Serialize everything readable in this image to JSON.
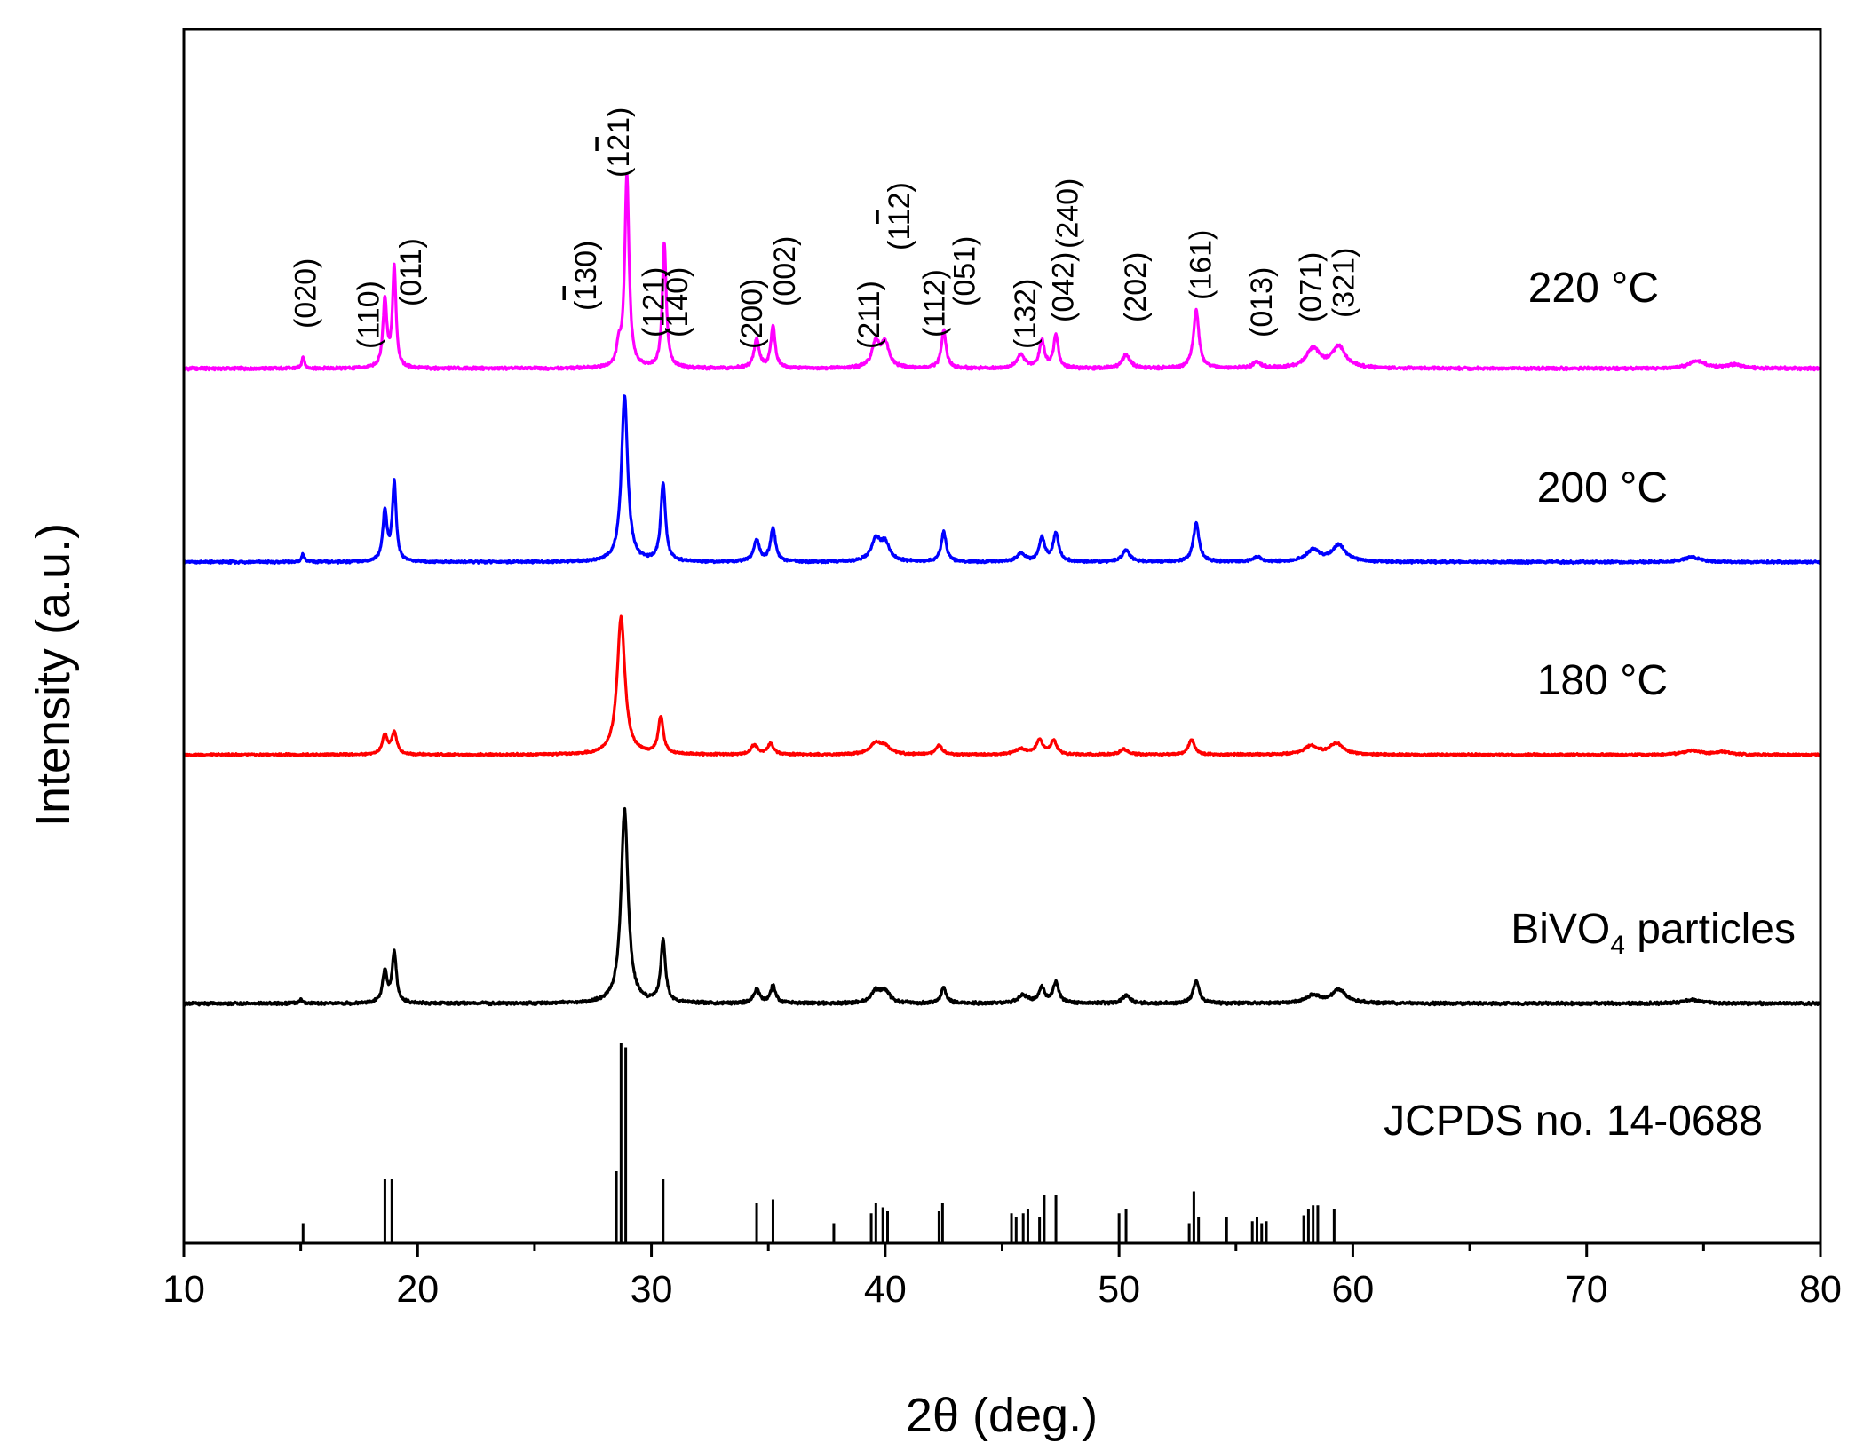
{
  "chart_data": {
    "type": "line",
    "xlabel": "2θ (deg.)",
    "ylabel": "Intensity (a.u.)",
    "xlim": [
      10,
      80
    ],
    "x_ticks": [
      "10",
      "20",
      "30",
      "40",
      "50",
      "60",
      "70",
      "80"
    ],
    "grid": false,
    "legend": "inline labels on right",
    "series": [
      {
        "name": "220 °C",
        "name_text": "220 ",
        "unit_text": "°C",
        "color": "#ff00ff",
        "baseline": 0,
        "peaks": [
          {
            "x": 15.1,
            "h": 0.06,
            "w": 0.07
          },
          {
            "x": 18.6,
            "h": 0.35,
            "w": 0.1
          },
          {
            "x": 19.0,
            "h": 0.52,
            "w": 0.09
          },
          {
            "x": 28.6,
            "h": 0.1,
            "w": 0.1
          },
          {
            "x": 28.95,
            "h": 1.0,
            "w": 0.11
          },
          {
            "x": 30.55,
            "h": 0.65,
            "w": 0.1
          },
          {
            "x": 34.5,
            "h": 0.15,
            "w": 0.13
          },
          {
            "x": 35.2,
            "h": 0.22,
            "w": 0.11
          },
          {
            "x": 39.6,
            "h": 0.13,
            "w": 0.2
          },
          {
            "x": 40.0,
            "h": 0.12,
            "w": 0.2
          },
          {
            "x": 42.5,
            "h": 0.2,
            "w": 0.12
          },
          {
            "x": 45.8,
            "h": 0.07,
            "w": 0.2
          },
          {
            "x": 46.7,
            "h": 0.14,
            "w": 0.13
          },
          {
            "x": 47.3,
            "h": 0.17,
            "w": 0.12
          },
          {
            "x": 50.3,
            "h": 0.07,
            "w": 0.2
          },
          {
            "x": 53.3,
            "h": 0.3,
            "w": 0.14
          },
          {
            "x": 55.9,
            "h": 0.03,
            "w": 0.2
          },
          {
            "x": 58.3,
            "h": 0.1,
            "w": 0.35
          },
          {
            "x": 59.4,
            "h": 0.11,
            "w": 0.35
          },
          {
            "x": 74.7,
            "h": 0.04,
            "w": 0.4
          },
          {
            "x": 76.3,
            "h": 0.02,
            "w": 0.4
          }
        ]
      },
      {
        "name": "200 °C",
        "name_text": "200 ",
        "unit_text": "°C",
        "color": "#0000ff",
        "baseline": 0,
        "peaks": [
          {
            "x": 15.1,
            "h": 0.05,
            "w": 0.07
          },
          {
            "x": 18.6,
            "h": 0.3,
            "w": 0.11
          },
          {
            "x": 19.0,
            "h": 0.47,
            "w": 0.1
          },
          {
            "x": 28.85,
            "h": 1.0,
            "w": 0.16
          },
          {
            "x": 30.5,
            "h": 0.47,
            "w": 0.12
          },
          {
            "x": 34.5,
            "h": 0.13,
            "w": 0.15
          },
          {
            "x": 35.2,
            "h": 0.2,
            "w": 0.13
          },
          {
            "x": 39.6,
            "h": 0.13,
            "w": 0.25
          },
          {
            "x": 40.0,
            "h": 0.1,
            "w": 0.22
          },
          {
            "x": 42.5,
            "h": 0.18,
            "w": 0.13
          },
          {
            "x": 45.8,
            "h": 0.05,
            "w": 0.2
          },
          {
            "x": 46.7,
            "h": 0.14,
            "w": 0.15
          },
          {
            "x": 47.3,
            "h": 0.17,
            "w": 0.14
          },
          {
            "x": 50.3,
            "h": 0.07,
            "w": 0.2
          },
          {
            "x": 53.3,
            "h": 0.23,
            "w": 0.15
          },
          {
            "x": 55.9,
            "h": 0.03,
            "w": 0.2
          },
          {
            "x": 58.3,
            "h": 0.07,
            "w": 0.35
          },
          {
            "x": 59.4,
            "h": 0.1,
            "w": 0.35
          },
          {
            "x": 74.5,
            "h": 0.03,
            "w": 0.4
          }
        ]
      },
      {
        "name": "180 °C",
        "name_text": "180 ",
        "unit_text": "°C",
        "color": "#ff0000",
        "baseline": 0,
        "peaks": [
          {
            "x": 18.6,
            "h": 0.14,
            "w": 0.13
          },
          {
            "x": 19.0,
            "h": 0.16,
            "w": 0.13
          },
          {
            "x": 28.7,
            "h": 1.0,
            "w": 0.2
          },
          {
            "x": 30.4,
            "h": 0.27,
            "w": 0.13
          },
          {
            "x": 34.4,
            "h": 0.07,
            "w": 0.17
          },
          {
            "x": 35.1,
            "h": 0.08,
            "w": 0.15
          },
          {
            "x": 39.6,
            "h": 0.08,
            "w": 0.3
          },
          {
            "x": 40.0,
            "h": 0.05,
            "w": 0.25
          },
          {
            "x": 42.3,
            "h": 0.07,
            "w": 0.15
          },
          {
            "x": 45.8,
            "h": 0.04,
            "w": 0.3
          },
          {
            "x": 46.6,
            "h": 0.1,
            "w": 0.17
          },
          {
            "x": 47.2,
            "h": 0.1,
            "w": 0.15
          },
          {
            "x": 50.2,
            "h": 0.04,
            "w": 0.2
          },
          {
            "x": 53.1,
            "h": 0.11,
            "w": 0.15
          },
          {
            "x": 58.2,
            "h": 0.06,
            "w": 0.35
          },
          {
            "x": 59.3,
            "h": 0.08,
            "w": 0.35
          },
          {
            "x": 74.5,
            "h": 0.03,
            "w": 0.4
          },
          {
            "x": 75.8,
            "h": 0.02,
            "w": 0.4
          }
        ]
      },
      {
        "name": "BiVO4 particles",
        "name_text": "BiVO",
        "name_sub": "4",
        "name_after": " particles",
        "color": "#000000",
        "baseline": 0,
        "peaks": [
          {
            "x": 15.0,
            "h": 0.02,
            "w": 0.07
          },
          {
            "x": 18.6,
            "h": 0.16,
            "w": 0.12
          },
          {
            "x": 19.0,
            "h": 0.26,
            "w": 0.11
          },
          {
            "x": 28.85,
            "h": 1.0,
            "w": 0.18
          },
          {
            "x": 30.5,
            "h": 0.32,
            "w": 0.12
          },
          {
            "x": 34.5,
            "h": 0.07,
            "w": 0.15
          },
          {
            "x": 35.2,
            "h": 0.09,
            "w": 0.13
          },
          {
            "x": 39.6,
            "h": 0.06,
            "w": 0.25
          },
          {
            "x": 40.0,
            "h": 0.06,
            "w": 0.22
          },
          {
            "x": 42.5,
            "h": 0.08,
            "w": 0.13
          },
          {
            "x": 45.9,
            "h": 0.04,
            "w": 0.25
          },
          {
            "x": 46.7,
            "h": 0.08,
            "w": 0.15
          },
          {
            "x": 47.3,
            "h": 0.11,
            "w": 0.14
          },
          {
            "x": 50.3,
            "h": 0.04,
            "w": 0.2
          },
          {
            "x": 53.3,
            "h": 0.12,
            "w": 0.15
          },
          {
            "x": 58.3,
            "h": 0.04,
            "w": 0.35
          },
          {
            "x": 59.4,
            "h": 0.07,
            "w": 0.35
          },
          {
            "x": 74.5,
            "h": 0.02,
            "w": 0.4
          }
        ]
      }
    ],
    "reference": {
      "name": "JCPDS  no. 14-0688",
      "color": "#000000",
      "lines": [
        {
          "x": 15.1,
          "h": 10
        },
        {
          "x": 18.6,
          "h": 32
        },
        {
          "x": 18.9,
          "h": 32
        },
        {
          "x": 28.5,
          "h": 36
        },
        {
          "x": 28.7,
          "h": 100
        },
        {
          "x": 28.9,
          "h": 98
        },
        {
          "x": 30.5,
          "h": 32
        },
        {
          "x": 34.5,
          "h": 20
        },
        {
          "x": 35.2,
          "h": 22
        },
        {
          "x": 37.8,
          "h": 10
        },
        {
          "x": 39.4,
          "h": 15
        },
        {
          "x": 39.6,
          "h": 20
        },
        {
          "x": 39.9,
          "h": 18
        },
        {
          "x": 40.1,
          "h": 16
        },
        {
          "x": 42.3,
          "h": 16
        },
        {
          "x": 42.45,
          "h": 20
        },
        {
          "x": 45.4,
          "h": 15
        },
        {
          "x": 45.6,
          "h": 13
        },
        {
          "x": 45.9,
          "h": 15
        },
        {
          "x": 46.1,
          "h": 17
        },
        {
          "x": 46.6,
          "h": 13
        },
        {
          "x": 46.8,
          "h": 24
        },
        {
          "x": 47.3,
          "h": 24
        },
        {
          "x": 50.0,
          "h": 15
        },
        {
          "x": 50.3,
          "h": 17
        },
        {
          "x": 53.0,
          "h": 10
        },
        {
          "x": 53.2,
          "h": 26
        },
        {
          "x": 53.4,
          "h": 13
        },
        {
          "x": 54.6,
          "h": 13
        },
        {
          "x": 55.7,
          "h": 11
        },
        {
          "x": 55.9,
          "h": 13
        },
        {
          "x": 56.1,
          "h": 10
        },
        {
          "x": 56.3,
          "h": 11
        },
        {
          "x": 57.9,
          "h": 14
        },
        {
          "x": 58.1,
          "h": 17
        },
        {
          "x": 58.3,
          "h": 19
        },
        {
          "x": 58.5,
          "h": 19
        },
        {
          "x": 59.2,
          "h": 17
        }
      ]
    },
    "annotations": [
      {
        "text": "(020)",
        "x": 15.1
      },
      {
        "text": "(110)",
        "x": 17.8
      },
      {
        "text": "(011)",
        "x": 19.6
      },
      {
        "text": "(130)",
        "x": 27.1,
        "bar": true
      },
      {
        "text": "(121)",
        "x": 28.5,
        "bar": true,
        "baroffset": 1
      },
      {
        "text": "(121)",
        "x": 30.0
      },
      {
        "text": "(140)",
        "x": 31.0
      },
      {
        "text": "(200)",
        "x": 34.2
      },
      {
        "text": "(002)",
        "x": 35.6
      },
      {
        "text": "(211)",
        "x": 39.2
      },
      {
        "text": "(112)",
        "x": 40.5,
        "bar": true,
        "baroffset": 1
      },
      {
        "text": "(112)",
        "x": 42.0
      },
      {
        "text": "(051)",
        "x": 43.3
      },
      {
        "text": "(132)",
        "x": 45.9
      },
      {
        "text": "(042)",
        "x": 47.5
      },
      {
        "text": "(240)",
        "x": 47.7
      },
      {
        "text": "(202)",
        "x": 50.6
      },
      {
        "text": "(161)",
        "x": 53.4
      },
      {
        "text": "(013)",
        "x": 56.0
      },
      {
        "text": "(071)",
        "x": 58.1
      },
      {
        "text": "(321)",
        "x": 59.5
      }
    ]
  }
}
